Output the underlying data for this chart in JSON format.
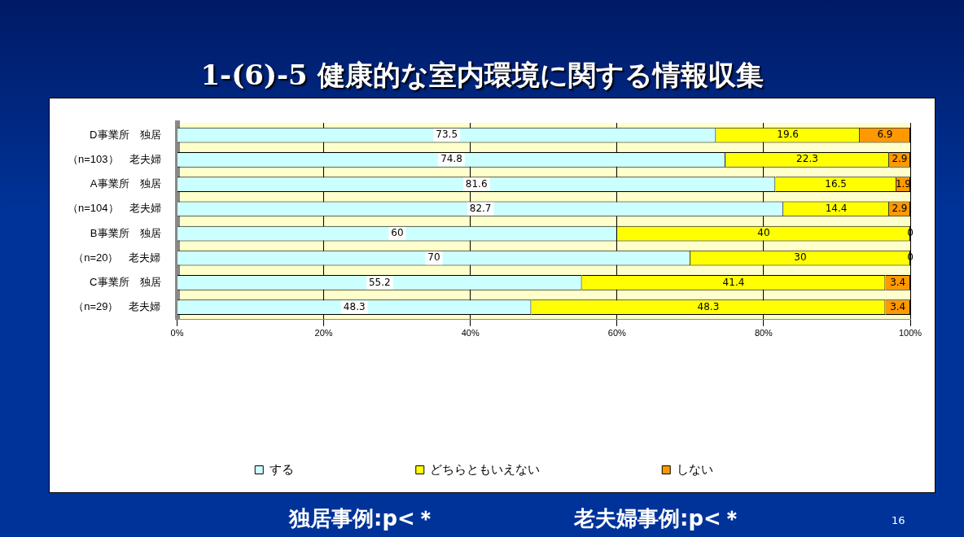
{
  "chart_data": {
    "type": "bar",
    "orientation": "horizontal",
    "stacked": true,
    "title": "1-(6)-5 健康的な室内環境に関する情報収集",
    "categories": [
      "D事業所　独居",
      "（n=103）　老夫婦",
      "A事業所　独居",
      "（n=104）　老夫婦",
      "B事業所　独居",
      "（n=20）　老夫婦",
      "C事業所　独居",
      "（n=29）　老夫婦"
    ],
    "series": [
      {
        "name": "する",
        "color": "#ccffff",
        "values": [
          73.5,
          74.8,
          81.6,
          82.7,
          60,
          70,
          55.2,
          48.3
        ]
      },
      {
        "name": "どちらともいえない",
        "color": "#ffff00",
        "values": [
          19.6,
          22.3,
          16.5,
          14.4,
          40,
          30,
          41.4,
          48.3
        ]
      },
      {
        "name": "しない",
        "color": "#ff9900",
        "values": [
          6.9,
          2.9,
          1.9,
          2.9,
          0,
          0,
          3.4,
          3.4
        ]
      }
    ],
    "xlim": [
      0,
      100
    ],
    "xticks": [
      {
        "value": 0,
        "label": "0%"
      },
      {
        "value": 20,
        "label": "20%"
      },
      {
        "value": 40,
        "label": "40%"
      },
      {
        "value": 60,
        "label": "60%"
      },
      {
        "value": 80,
        "label": "80%"
      },
      {
        "value": 100,
        "label": "100%"
      }
    ],
    "grid": "x",
    "legend": "bottom",
    "data_labels": true,
    "annotations": [
      "独居事例:p<＊",
      "老夫婦事例:p<＊",
      "16"
    ]
  }
}
